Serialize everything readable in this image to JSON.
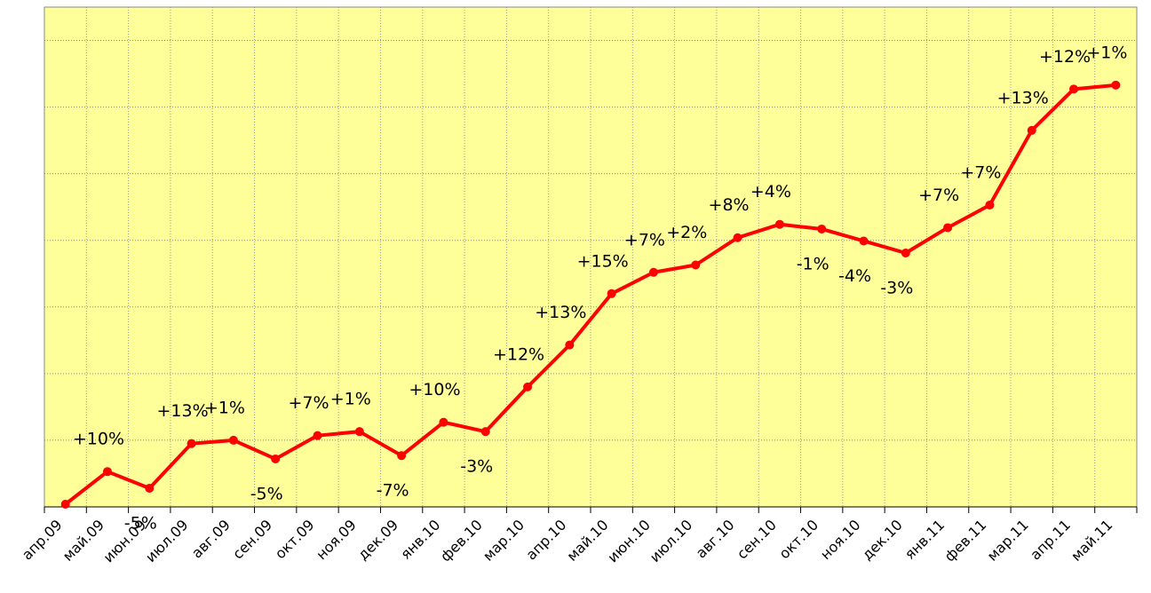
{
  "chart_data": {
    "type": "line",
    "categories": [
      "апр.09",
      "май.09",
      "июн.09",
      "июл.09",
      "авг.09",
      "сен.09",
      "окт.09",
      "ноя.09",
      "дек.09",
      "янв.10",
      "фев.10",
      "мар.10",
      "апр.10",
      "май.10",
      "июн.10",
      "июл.10",
      "авг.10",
      "сен.10",
      "окт.10",
      "ноя.10",
      "дек.10",
      "янв.11",
      "фев.11",
      "мар.11",
      "апр.11",
      "май.11"
    ],
    "values": [
      0.04,
      0.53,
      0.28,
      0.95,
      1.0,
      0.72,
      1.07,
      1.13,
      0.77,
      1.27,
      1.13,
      1.8,
      2.43,
      3.2,
      3.52,
      3.63,
      4.04,
      4.24,
      4.17,
      3.99,
      3.81,
      4.19,
      4.53,
      5.65,
      6.27,
      6.33
    ],
    "change_labels": [
      null,
      "+10%",
      "-5%",
      "+13%",
      "+1%",
      "-5%",
      "+7%",
      "+1%",
      "-7%",
      "+10%",
      "-3%",
      "+12%",
      "+13%",
      "+15%",
      "+7%",
      "+2%",
      "+8%",
      "+4%",
      "-1%",
      "-4%",
      "-3%",
      "+7%",
      "+7%",
      "+13%",
      "+12%",
      "+1%"
    ],
    "color": "#ff0000",
    "background": "#ffff99",
    "ylim": [
      0,
      7.5
    ],
    "yticks": [
      0,
      1,
      2,
      3,
      4,
      5,
      6,
      7
    ],
    "grid": true
  }
}
